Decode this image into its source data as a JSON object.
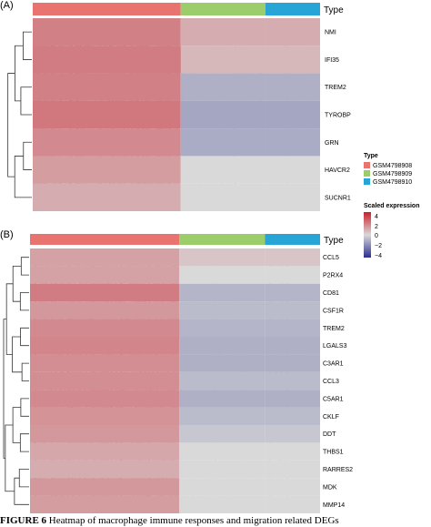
{
  "chart_data": [
    {
      "type": "heatmap",
      "panel_label": "(A)",
      "annotation_title": "Type",
      "groups": [
        "GSM4798908",
        "GSM4798909",
        "GSM4798910"
      ],
      "group_cell_fractions": [
        0.515,
        0.295,
        0.19
      ],
      "rows": [
        "NMI",
        "IFI35",
        "TREM2",
        "TYROBP",
        "GRN",
        "HAVCR2",
        "SUCNR1"
      ],
      "group_mean_scaled_expression": [
        [
          1.5,
          0.6,
          0.6
        ],
        [
          1.6,
          0.4,
          0.4
        ],
        [
          1.5,
          -0.6,
          -0.6
        ],
        [
          1.7,
          -0.8,
          -0.8
        ],
        [
          1.3,
          -0.7,
          -0.7
        ],
        [
          0.9,
          0.0,
          0.0
        ],
        [
          0.6,
          0.0,
          0.0
        ]
      ]
    },
    {
      "type": "heatmap",
      "panel_label": "(B)",
      "annotation_title": "Type",
      "groups": [
        "GSM4798908",
        "GSM4798909",
        "GSM4798910"
      ],
      "group_cell_fractions": [
        0.515,
        0.295,
        0.19
      ],
      "rows": [
        "CCL5",
        "P2RX4",
        "CD81",
        "CSF1R",
        "TREM2",
        "LGALS3",
        "C3AR1",
        "CCL3",
        "C5AR1",
        "CKLF",
        "DDT",
        "THBS1",
        "RARRES2",
        "MDK",
        "MMP14"
      ],
      "group_mean_scaled_expression": [
        [
          0.8,
          0.2,
          0.2
        ],
        [
          0.8,
          0.0,
          0.0
        ],
        [
          1.6,
          -0.5,
          -0.5
        ],
        [
          1.0,
          -0.4,
          -0.4
        ],
        [
          1.3,
          -0.5,
          -0.5
        ],
        [
          1.4,
          -0.6,
          -0.6
        ],
        [
          1.2,
          -0.6,
          -0.6
        ],
        [
          1.2,
          -0.4,
          -0.4
        ],
        [
          1.3,
          -0.6,
          -0.6
        ],
        [
          1.1,
          -0.4,
          -0.4
        ],
        [
          1.0,
          -0.2,
          -0.2
        ],
        [
          0.7,
          0.0,
          0.0
        ],
        [
          0.6,
          0.0,
          0.0
        ],
        [
          1.0,
          0.0,
          0.0
        ],
        [
          0.9,
          0.0,
          0.0
        ]
      ]
    }
  ],
  "legend": {
    "type_title": "Type",
    "type_items": [
      {
        "label": "GSM4798908",
        "color": "#e8736f"
      },
      {
        "label": "GSM4798909",
        "color": "#9bcd6a"
      },
      {
        "label": "GSM4798910",
        "color": "#26a5d6"
      }
    ],
    "scale_title": "Scaled expression",
    "scale_ticks": [
      "4",
      "2",
      "0",
      "−2",
      "−4"
    ],
    "scale_values": [
      4,
      2,
      0,
      -2,
      -4
    ],
    "scale_colors": {
      "high": "#c9202c",
      "mid": "#d9d9d9",
      "low": "#2b2f8c"
    }
  },
  "caption": {
    "figure_label": "FIGURE 6",
    "text": "Heatmap of macrophage immune responses and migration related DEGs"
  }
}
